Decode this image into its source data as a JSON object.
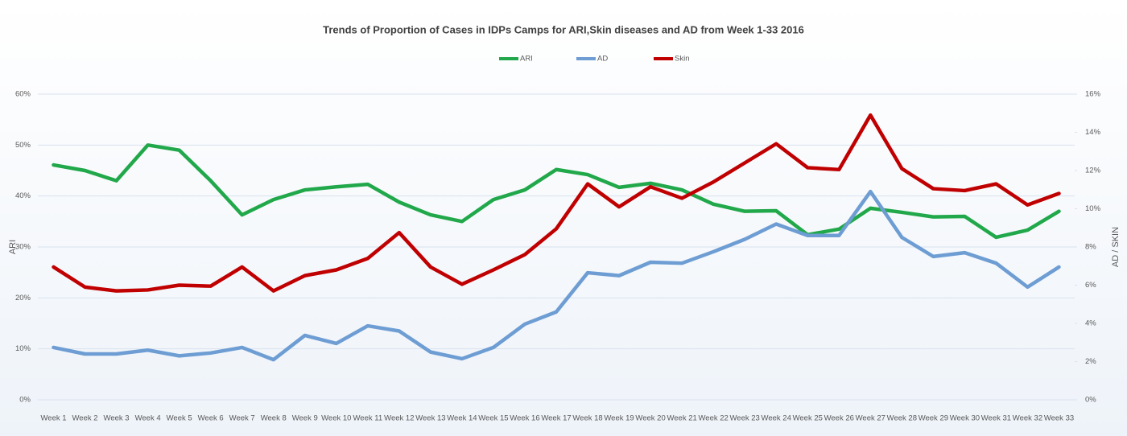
{
  "chart_data": {
    "type": "line",
    "title": "Trends of Proportion of Cases in IDPs Camps for ARI,Skin diseases and AD from Week 1-33 2016",
    "y_label": "ARI",
    "y2_label": "AD / SKIN",
    "categories": [
      "Week 1",
      "Week 2",
      "Week 3",
      "Week 4",
      "Week 5",
      "Week 6",
      "Week 7",
      "Week 8",
      "Week 9",
      "Week 10",
      "Week 11",
      "Week 12",
      "Week 13",
      "Week 14",
      "Week 15",
      "Week 16",
      "Week 17",
      "Week 18",
      "Week 19",
      "Week 20",
      "Week 21",
      "Week 22",
      "Week 23",
      "Week 24",
      "Week 25",
      "Week 26",
      "Week 27",
      "Week 28",
      "Week 29",
      "Week 30",
      "Week 31",
      "Week 32",
      "Week 33"
    ],
    "series": [
      {
        "name": "ARI",
        "color": "#21a84a",
        "values": [
          46.1,
          45,
          43,
          50,
          49,
          43,
          36.3,
          39.3,
          41.2,
          41.8,
          42.3,
          38.8,
          36.3,
          35,
          39.3,
          41.2,
          45.2,
          44.2,
          41.7,
          42.5,
          41.2,
          38.4,
          37,
          37.1,
          32.4,
          33.5,
          37.6,
          36.8,
          35.9,
          36,
          31.9,
          33.3,
          37
        ]
      },
      {
        "name": "AD",
        "color": "#6d9dd3",
        "axis": "y2",
        "values": [
          2.74,
          2.4,
          2.4,
          2.6,
          2.3,
          2.45,
          2.74,
          2.1,
          3.37,
          2.95,
          3.87,
          3.6,
          2.5,
          2.15,
          2.74,
          3.96,
          4.6,
          6.65,
          6.5,
          7.2,
          7.15,
          7.75,
          8.4,
          9.2,
          8.6,
          8.6,
          10.9,
          8.5,
          7.5,
          7.7,
          7.15,
          5.9,
          6.95
        ]
      },
      {
        "name": "Skin",
        "color": "#c00000",
        "axis": "y2",
        "values": [
          6.95,
          5.9,
          5.7,
          5.75,
          6,
          5.95,
          6.95,
          5.7,
          6.5,
          6.8,
          7.4,
          8.75,
          6.95,
          6.05,
          6.8,
          7.6,
          8.95,
          11.3,
          10.1,
          11.15,
          10.55,
          11.4,
          12.4,
          13.4,
          12.15,
          12.05,
          14.9,
          12.1,
          11.05,
          10.95,
          11.3,
          10.2,
          10.8
        ]
      }
    ],
    "ylim": [
      0,
      60
    ],
    "yticks": [
      {
        "value": 0,
        "label": "0%"
      },
      {
        "value": 10,
        "label": "10%"
      },
      {
        "value": 20,
        "label": "20%"
      },
      {
        "value": 30,
        "label": "30%"
      },
      {
        "value": 40,
        "label": "40%"
      },
      {
        "value": 50,
        "label": "50%"
      },
      {
        "value": 60,
        "label": "60%"
      }
    ],
    "y2lim": [
      0,
      16
    ],
    "y2ticks": [
      {
        "value": 0,
        "label": "0%"
      },
      {
        "value": 2,
        "label": "2%"
      },
      {
        "value": 4,
        "label": "4%"
      },
      {
        "value": 6,
        "label": "6%"
      },
      {
        "value": 8,
        "label": "8%"
      },
      {
        "value": 10,
        "label": "10%"
      },
      {
        "value": 12,
        "label": "12%"
      },
      {
        "value": 14,
        "label": "14%"
      },
      {
        "value": 16,
        "label": "16%"
      }
    ],
    "grid": true,
    "legend": "top"
  }
}
